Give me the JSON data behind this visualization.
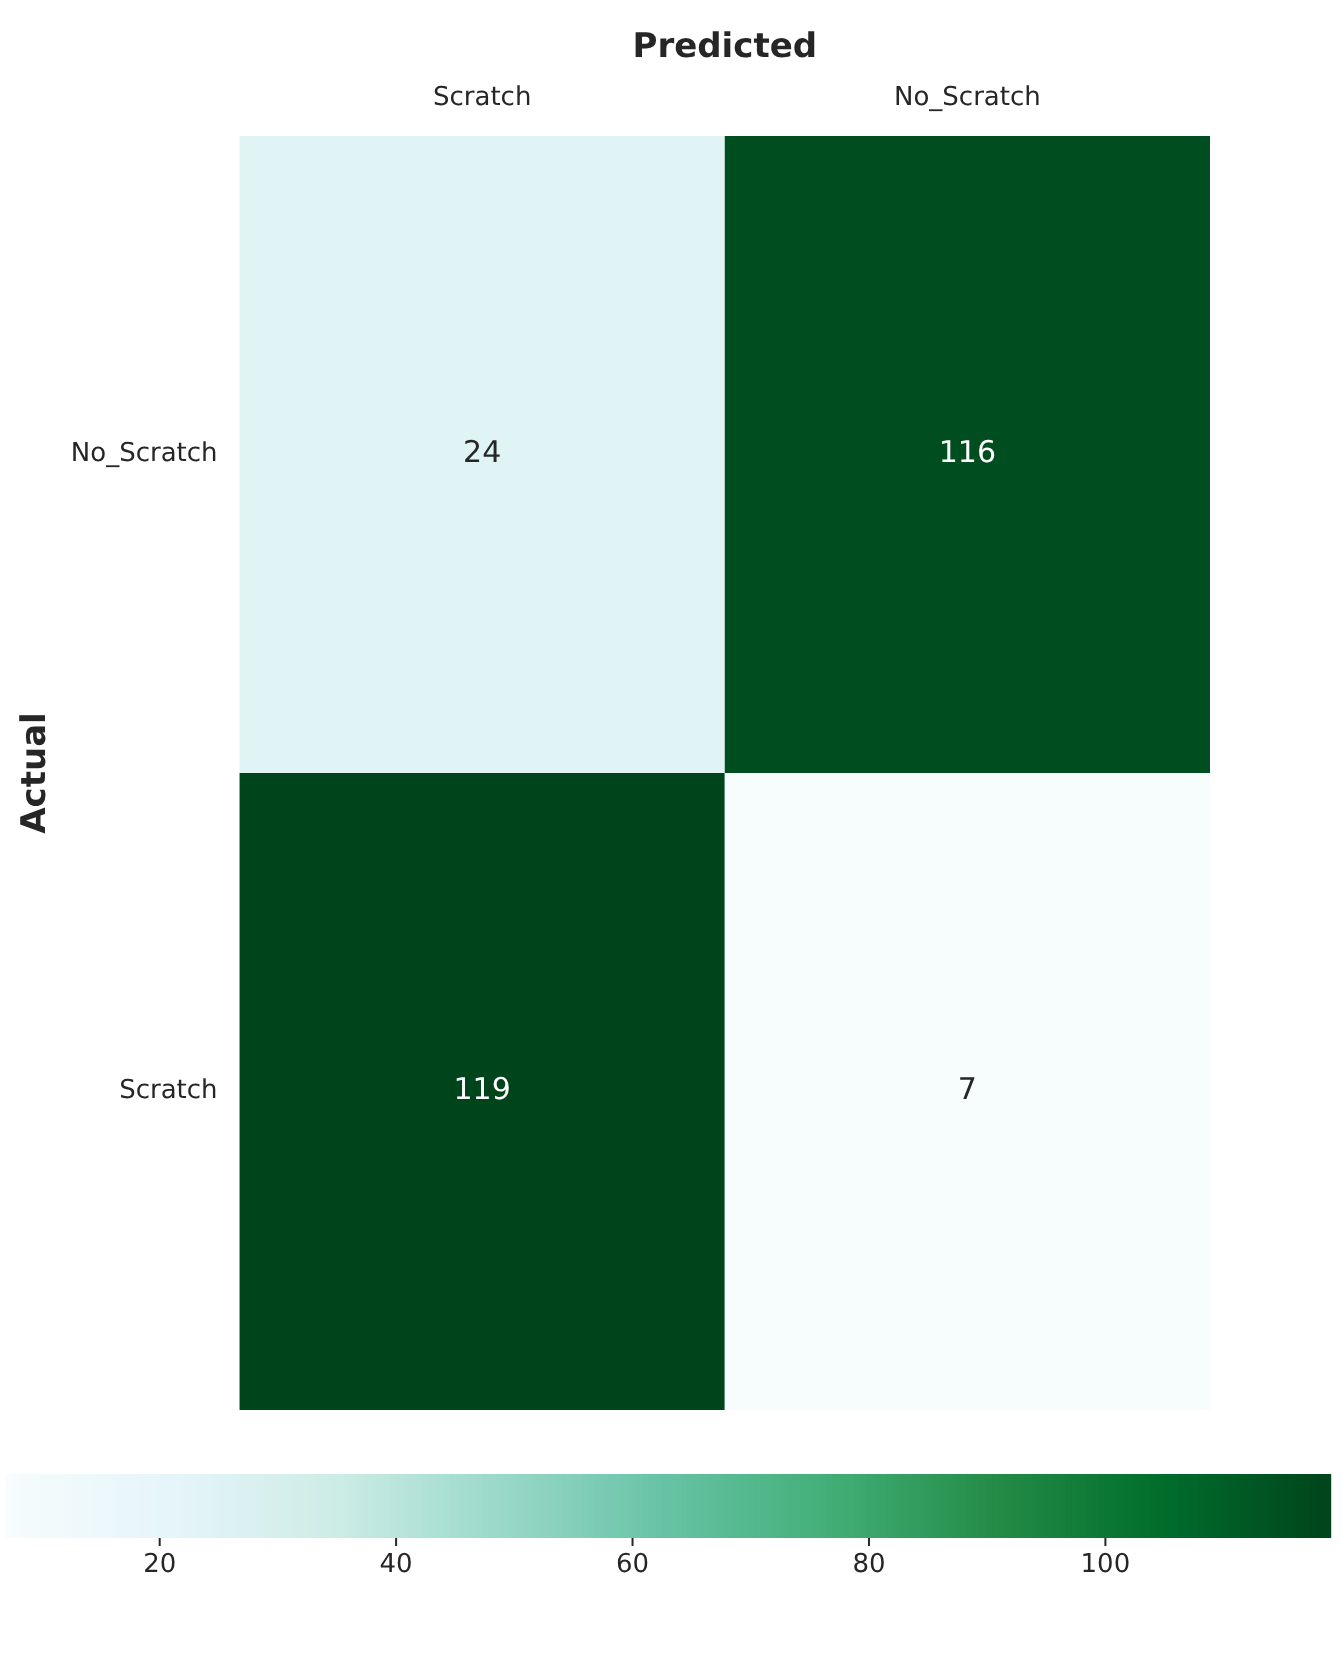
{
  "chart_data": {
    "type": "heatmap",
    "xlabel": "Predicted",
    "ylabel": "Actual",
    "categories": [
      "Scratch",
      "No_Scratch"
    ],
    "y_categories": [
      "No_Scratch",
      "Scratch"
    ],
    "cells": [
      [
        24,
        116
      ],
      [
        119,
        7
      ]
    ],
    "data_labels": true,
    "clim": [
      7,
      119
    ],
    "cticks": [
      20,
      40,
      60,
      80,
      100
    ]
  }
}
